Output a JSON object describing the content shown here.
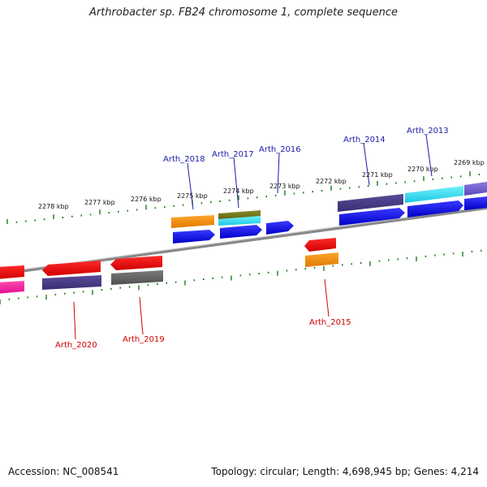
{
  "title": "Arthrobacter sp. FB24 chromosome 1, complete sequence",
  "footer": {
    "accession": "Accession: NC_008541",
    "topology": "Topology: circular; Length: 4,698,945 bp; Genes: 4,214"
  },
  "scale_labels": [
    "2278 kbp",
    "2277 kbp",
    "2276 kbp",
    "2275 kbp",
    "2274 kbp",
    "2273 kbp",
    "2272 kbp",
    "2271 kbp",
    "2270 kbp",
    "2269 kbp"
  ],
  "gene_labels": {
    "forward": [
      "Arth_2018",
      "Arth_2017",
      "Arth_2016",
      "Arth_2014",
      "Arth_2013"
    ],
    "reverse": [
      "Arth_2020",
      "Arth_2019",
      "Arth_2015"
    ]
  },
  "colors": {
    "forward_label": "#1a1aaa",
    "reverse_label": "#cc0000",
    "tick": "#1a7a1a",
    "backbone": "#888888"
  }
}
